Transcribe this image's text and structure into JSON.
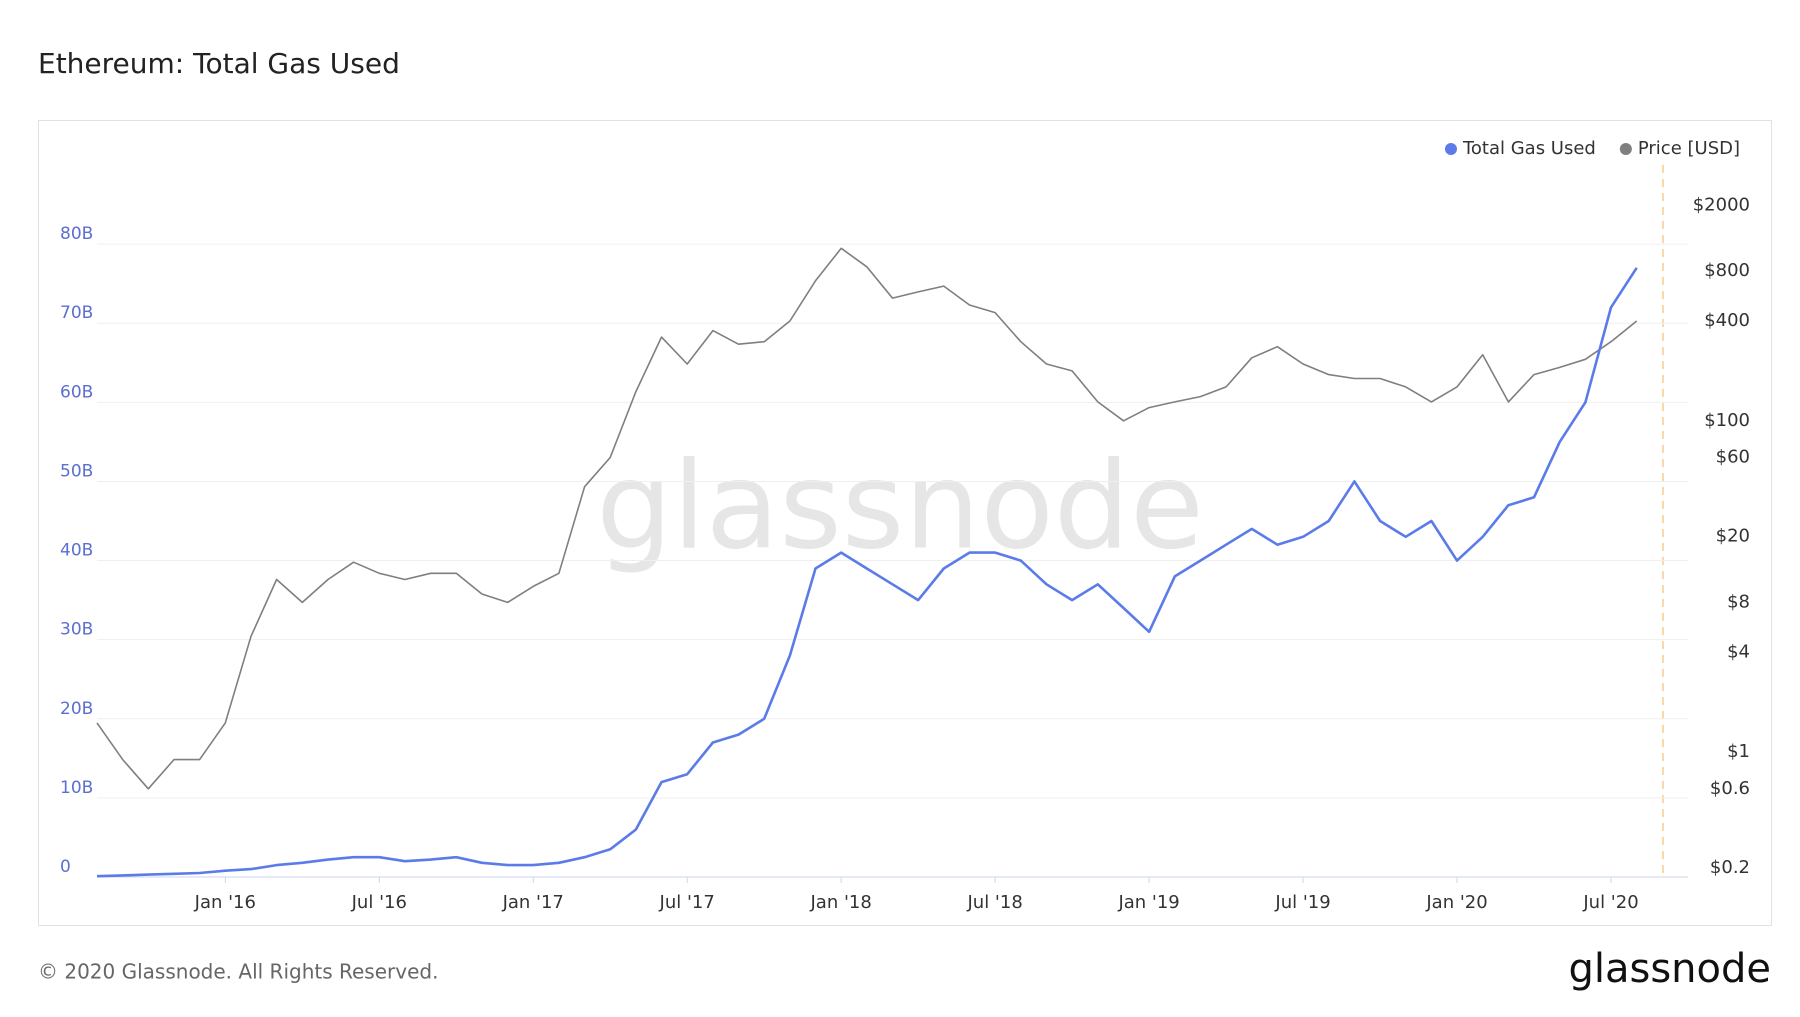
{
  "chart_data": {
    "type": "line",
    "title": "Ethereum: Total Gas Used",
    "watermark": "glassnode",
    "footer": "© 2020 Glassnode. All Rights Reserved.",
    "brand": "glassnode",
    "x": [
      "2015-08",
      "2015-09",
      "2015-10",
      "2015-11",
      "2015-12",
      "2016-01",
      "2016-02",
      "2016-03",
      "2016-04",
      "2016-05",
      "2016-06",
      "2016-07",
      "2016-08",
      "2016-09",
      "2016-10",
      "2016-11",
      "2016-12",
      "2017-01",
      "2017-02",
      "2017-03",
      "2017-04",
      "2017-05",
      "2017-06",
      "2017-07",
      "2017-08",
      "2017-09",
      "2017-10",
      "2017-11",
      "2017-12",
      "2018-01",
      "2018-02",
      "2018-03",
      "2018-04",
      "2018-05",
      "2018-06",
      "2018-07",
      "2018-08",
      "2018-09",
      "2018-10",
      "2018-11",
      "2018-12",
      "2019-01",
      "2019-02",
      "2019-03",
      "2019-04",
      "2019-05",
      "2019-06",
      "2019-07",
      "2019-08",
      "2019-09",
      "2019-10",
      "2019-11",
      "2019-12",
      "2020-01",
      "2020-02",
      "2020-03",
      "2020-04",
      "2020-05",
      "2020-06",
      "2020-07",
      "2020-08"
    ],
    "xlim": [
      "2015-08",
      "2020-10"
    ],
    "xticks": [
      {
        "value": "2016-01",
        "label": "Jan '16"
      },
      {
        "value": "2016-07",
        "label": "Jul '16"
      },
      {
        "value": "2017-01",
        "label": "Jan '17"
      },
      {
        "value": "2017-07",
        "label": "Jul '17"
      },
      {
        "value": "2018-01",
        "label": "Jan '18"
      },
      {
        "value": "2018-07",
        "label": "Jul '18"
      },
      {
        "value": "2019-01",
        "label": "Jan '19"
      },
      {
        "value": "2019-07",
        "label": "Jul '19"
      },
      {
        "value": "2020-01",
        "label": "Jan '20"
      },
      {
        "value": "2020-07",
        "label": "Jul '20"
      }
    ],
    "ylim": [
      0,
      90000000000
    ],
    "yticks": [
      0,
      {
        "value": 10000000000,
        "label": "10B"
      },
      {
        "value": 20000000000,
        "label": "20B"
      },
      {
        "value": 30000000000,
        "label": "30B"
      },
      {
        "value": 40000000000,
        "label": "40B"
      },
      {
        "value": 50000000000,
        "label": "50B"
      },
      {
        "value": 60000000000,
        "label": "60B"
      },
      {
        "value": 70000000000,
        "label": "70B"
      },
      {
        "value": 80000000000,
        "label": "80B"
      }
    ],
    "y2lim": [
      0.176,
      3500
    ],
    "y2log": true,
    "y2ticks": [
      {
        "value": 0.2,
        "label": "$0.2"
      },
      {
        "value": 0.6,
        "label": "$0.6"
      },
      {
        "value": 1,
        "label": "$1"
      },
      {
        "value": 4,
        "label": "$4"
      },
      {
        "value": 8,
        "label": "$8"
      },
      {
        "value": 20,
        "label": "$20"
      },
      {
        "value": 60,
        "label": "$60"
      },
      {
        "value": 100,
        "label": "$100"
      },
      {
        "value": 400,
        "label": "$400"
      },
      {
        "value": 800,
        "label": "$800"
      },
      {
        "value": 2000,
        "label": "$2000"
      }
    ],
    "grid": true,
    "legend": "top-right",
    "series": [
      {
        "name": "Total Gas Used",
        "color": "#5b7be9",
        "axis": "y",
        "values": [
          100000000.0,
          200000000.0,
          300000000.0,
          400000000.0,
          500000000.0,
          800000000.0,
          1000000000.0,
          1500000000.0,
          1800000000.0,
          2200000000.0,
          2500000000.0,
          2500000000.0,
          2000000000.0,
          2200000000.0,
          2500000000.0,
          1800000000.0,
          1500000000.0,
          1500000000.0,
          1800000000.0,
          2500000000.0,
          3500000000.0,
          6000000000.0,
          12000000000.0,
          13000000000.0,
          17000000000.0,
          18000000000.0,
          20000000000.0,
          28000000000.0,
          39000000000.0,
          41000000000.0,
          39000000000.0,
          37000000000.0,
          35000000000.0,
          39000000000.0,
          41000000000.0,
          41000000000.0,
          40000000000.0,
          37000000000.0,
          35000000000.0,
          37000000000.0,
          34000000000.0,
          31000000000.0,
          38000000000.0,
          40000000000.0,
          42000000000.0,
          44000000000.0,
          42000000000.0,
          43000000000.0,
          45000000000.0,
          50000000000.0,
          45000000000.0,
          43000000000.0,
          45000000000.0,
          40000000000.0,
          43000000000.0,
          47000000000.0,
          48000000000.0,
          55000000000.0,
          60000000000.0,
          72000000000.0,
          77000000000.0
        ]
      },
      {
        "name": "Price [USD]",
        "color": "#7f7f7f",
        "axis": "y2",
        "values": [
          1.5,
          0.9,
          0.6,
          0.9,
          0.9,
          1.5,
          5,
          11,
          8,
          11,
          14,
          12,
          11,
          12,
          12,
          9,
          8,
          10,
          12,
          40,
          60,
          150,
          320,
          220,
          350,
          290,
          300,
          400,
          700,
          1100,
          850,
          550,
          600,
          650,
          500,
          450,
          300,
          220,
          200,
          130,
          100,
          120,
          130,
          140,
          160,
          240,
          280,
          220,
          190,
          180,
          180,
          160,
          130,
          160,
          250,
          130,
          190,
          210,
          235,
          300,
          400
        ]
      }
    ]
  }
}
